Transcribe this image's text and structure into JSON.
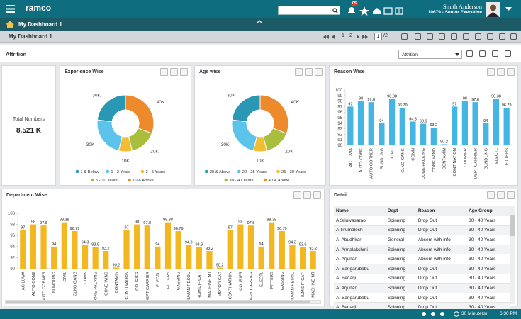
{
  "header": {
    "brand": "ramco",
    "notifications": "05",
    "user_name": "Smith Anderson",
    "user_role": "10679 - Senior Executive"
  },
  "breadcrumb": "My Dashboard 1",
  "toolbar": {
    "title": "My Dashboard 1",
    "pages": [
      "1",
      "2"
    ],
    "current_page": "1",
    "page_total": "/2"
  },
  "filter": {
    "label": "Attrition",
    "selected": "Attrition"
  },
  "kpi": {
    "label": "Total Numbers",
    "value": "8,521 K"
  },
  "chart_data": [
    {
      "type": "pie",
      "title": "Experience Wise",
      "categories": [
        "1 & Below",
        "1 - 2 Years",
        "2 - 5 Years",
        "5 - 10 Years",
        "10 & Above"
      ],
      "values": [
        30,
        30,
        10,
        20,
        40
      ],
      "value_labels": [
        "30K",
        "30K",
        "10K",
        "20K",
        "40K"
      ],
      "colors": [
        "#2a97b4",
        "#5cc3ea",
        "#f3bd33",
        "#a9be3d",
        "#ec8a2c"
      ]
    },
    {
      "type": "pie",
      "title": "Age wise",
      "categories": [
        "20 & Above",
        "20 - 25 Years",
        "25 - 30 Years",
        "30 - 40 Years",
        "40 & Above"
      ],
      "values": [
        30,
        30,
        10,
        20,
        40
      ],
      "value_labels": [
        "30K",
        "30K",
        "10K",
        "20K",
        "40K"
      ],
      "colors": [
        "#2a97b4",
        "#5cc3ea",
        "#f3bd33",
        "#a9be3d",
        "#ec8a2c"
      ]
    },
    {
      "type": "bar",
      "title": "Reason Wise",
      "color": "#45b6e4",
      "categories": [
        "AC LUWA",
        "AUTO CONE",
        "AUTO CORNER",
        "BUNDLING",
        "CIVIL",
        "CLNG GANG",
        "COMN",
        "CONE PACKING",
        "CONE WIND",
        "CONTAMIN",
        "CONTINATION",
        "COURIER",
        "DEPT CARRIER",
        "BUNDLING",
        "ELECTL",
        "FITTERS"
      ],
      "values": [
        97,
        98,
        97.8,
        94,
        98.38,
        96.79,
        94.3,
        93.9,
        93.2,
        90.2,
        97,
        98,
        97.8,
        94,
        98.38,
        96.79
      ],
      "ylim": [
        90,
        100
      ],
      "yticks": [
        90,
        91,
        92,
        93,
        94,
        95,
        96,
        97,
        98,
        99,
        100
      ]
    },
    {
      "type": "bar",
      "title": "Department Wise",
      "color": "#f3b720",
      "categories": [
        "AC LUWA",
        "AUTO CONE",
        "AUTO CORNER",
        "BUNDLING",
        "CIVIL",
        "CLNG GANG",
        "COMN",
        "CONE PACKING",
        "CONE WIND",
        "CONTAMIN",
        "CONTINATION",
        "COURIER",
        "DEPT CARRIER",
        "ELECTL",
        "FITTERS",
        "GASSING",
        "HUMAN RESOU",
        "HUMIDIFICATI",
        "MACHINE MT",
        "MOTOR CAR",
        "CONTINATION",
        "COURIER",
        "DEPT CARRIER",
        "ELECTL",
        "FITTERS",
        "GASSING",
        "HUMAN RESOU",
        "HUMIDIFICATI",
        "MACHINE MT"
      ],
      "values": [
        97,
        98,
        97.8,
        94,
        98.38,
        96.79,
        94.3,
        93.9,
        93.2,
        90.2,
        97,
        98,
        97.8,
        94,
        98.38,
        96.79,
        94.3,
        93.9,
        93.2,
        90.2,
        97,
        98,
        97.8,
        94,
        98.38,
        96.79,
        94.3,
        93.9,
        93.2
      ],
      "ylim": [
        90,
        100
      ],
      "yticks": [
        90,
        92,
        94,
        96,
        98,
        100
      ]
    }
  ],
  "detail": {
    "title": "Detail",
    "columns": [
      "Name",
      "Dept",
      "Reason",
      "Age Group"
    ],
    "rows": [
      [
        "A Srinivasarao",
        "Spinning",
        "Drop Out",
        "30 - 40 Years"
      ],
      [
        "A Tirumalesh",
        "Spinning",
        "Drop Out",
        "30 - 40 Years"
      ],
      [
        "A. Abudhkar",
        "General",
        "Absent with info",
        "30 - 40 Years"
      ],
      [
        "A. Annalakshmi",
        "Spinning",
        "Absent with info",
        "30 - 40 Years"
      ],
      [
        "A. Arjunan",
        "Spinning",
        "Absent with info",
        "30 - 40 Years"
      ],
      [
        "A. Bangarubabu",
        "Spinning",
        "Drop Out",
        "30 - 40 Years"
      ],
      [
        "A. Benarji",
        "Spinning",
        "Drop Out",
        "30 - 40 Years"
      ],
      [
        "A. Arjunan",
        "Spinning",
        "Drop Out",
        "30 - 40 Years"
      ],
      [
        "A. Bangarubabu",
        "Spinning",
        "Drop Out",
        "30 - 40 Years"
      ],
      [
        "A. Benarji",
        "Spinning",
        "Drop Out",
        "30 - 40 Years"
      ]
    ]
  },
  "footer": {
    "refresh": "30 Minute(s)",
    "time": "6.30 PM"
  }
}
